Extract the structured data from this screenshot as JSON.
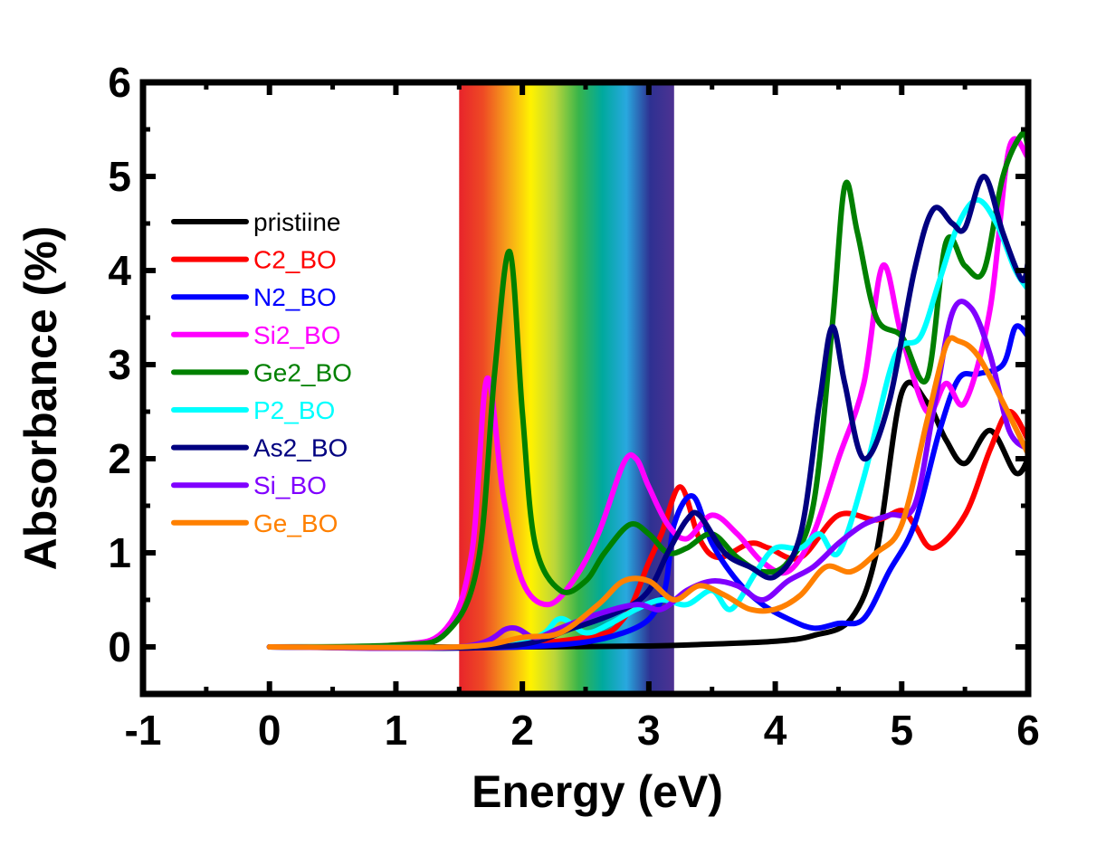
{
  "chart_data": {
    "type": "line",
    "xlabel": "Energy (eV)",
    "ylabel": "Absorbance (%)",
    "xlim": [
      -1,
      6
    ],
    "ylim": [
      -0.5,
      6
    ],
    "x_ticks": [
      "-1",
      "0",
      "1",
      "2",
      "3",
      "4",
      "5",
      "6"
    ],
    "y_ticks": [
      "0",
      "1",
      "2",
      "3",
      "4",
      "5",
      "6"
    ],
    "legend_position": "left",
    "grid": false,
    "visible_spectrum_band": {
      "x_range": [
        1.5,
        3.2
      ],
      "colors": [
        "#e8242b",
        "#ee4a24",
        "#f6a01a",
        "#fff200",
        "#bcd63a",
        "#39b54a",
        "#00a99d",
        "#29a8df",
        "#2e3192",
        "#4e3292"
      ]
    },
    "series": [
      {
        "name": "pristiine",
        "color": "#000000",
        "x": [
          0,
          1,
          2,
          3,
          3.5,
          4,
          4.3,
          4.6,
          4.8,
          5.0,
          5.2,
          5.35,
          5.5,
          5.7,
          5.9,
          6.0
        ],
        "y": [
          0,
          0,
          0,
          0.01,
          0.03,
          0.06,
          0.12,
          0.3,
          1.0,
          2.7,
          2.6,
          2.2,
          1.95,
          2.3,
          1.85,
          2.0
        ]
      },
      {
        "name": "C2_BO",
        "color": "#ff0000",
        "x": [
          0,
          1.5,
          2.5,
          2.8,
          3.0,
          3.1,
          3.25,
          3.4,
          3.55,
          3.8,
          3.95,
          4.2,
          4.5,
          4.8,
          5.0,
          5.1,
          5.25,
          5.5,
          5.7,
          5.85,
          6.0
        ],
        "y": [
          0,
          0,
          0.1,
          0.3,
          0.9,
          1.2,
          1.7,
          1.15,
          0.95,
          1.1,
          1.05,
          0.95,
          1.4,
          1.35,
          1.45,
          1.3,
          1.05,
          1.4,
          2.1,
          2.5,
          2.2
        ]
      },
      {
        "name": "N2_BO",
        "color": "#0000ff",
        "x": [
          0,
          2.0,
          2.8,
          3.1,
          3.2,
          3.35,
          3.5,
          3.7,
          3.9,
          4.1,
          4.3,
          4.5,
          4.7,
          4.9,
          5.1,
          5.3,
          5.45,
          5.6,
          5.8,
          5.9,
          6.0
        ],
        "y": [
          0,
          0,
          0.15,
          0.5,
          1.3,
          1.6,
          1.1,
          0.7,
          0.45,
          0.3,
          0.2,
          0.25,
          0.3,
          0.8,
          1.3,
          2.3,
          2.85,
          2.9,
          3.0,
          3.4,
          3.3
        ]
      },
      {
        "name": "Si2_BO",
        "color": "#ff00ff",
        "x": [
          0,
          1.0,
          1.4,
          1.6,
          1.72,
          1.85,
          2.0,
          2.2,
          2.4,
          2.6,
          2.8,
          2.9,
          3.0,
          3.15,
          3.3,
          3.5,
          3.7,
          3.9,
          4.1,
          4.3,
          4.5,
          4.7,
          4.85,
          5.0,
          5.2,
          5.35,
          5.5,
          5.7,
          5.85,
          6.0
        ],
        "y": [
          0,
          0.02,
          0.2,
          1.0,
          2.85,
          1.6,
          0.7,
          0.45,
          0.7,
          1.2,
          1.95,
          2.0,
          1.7,
          1.3,
          1.15,
          1.4,
          1.2,
          0.9,
          0.8,
          1.2,
          2.0,
          2.8,
          4.05,
          3.3,
          2.5,
          2.8,
          2.6,
          3.6,
          5.3,
          5.2
        ]
      },
      {
        "name": "Ge2_BO",
        "color": "#008000",
        "x": [
          0,
          1.0,
          1.4,
          1.65,
          1.78,
          1.9,
          2.0,
          2.1,
          2.3,
          2.5,
          2.65,
          2.85,
          3.0,
          3.15,
          3.3,
          3.5,
          3.7,
          3.9,
          4.1,
          4.3,
          4.45,
          4.55,
          4.65,
          4.8,
          5.0,
          5.2,
          5.35,
          5.5,
          5.65,
          5.8,
          5.95,
          6.0
        ],
        "y": [
          0,
          0.02,
          0.15,
          0.9,
          2.9,
          4.2,
          2.5,
          1.1,
          0.6,
          0.7,
          1.0,
          1.3,
          1.2,
          1.0,
          1.05,
          1.2,
          0.95,
          0.8,
          0.9,
          1.5,
          3.4,
          4.9,
          4.4,
          3.5,
          3.3,
          2.85,
          4.3,
          4.05,
          4.0,
          5.0,
          5.45,
          5.3
        ]
      },
      {
        "name": "P2_BO",
        "color": "#00ffff",
        "x": [
          0,
          1.5,
          2.1,
          2.3,
          2.5,
          2.7,
          2.9,
          3.1,
          3.3,
          3.5,
          3.65,
          3.85,
          4.0,
          4.2,
          4.35,
          4.5,
          4.7,
          4.9,
          5.0,
          5.15,
          5.3,
          5.45,
          5.6,
          5.75,
          5.9,
          6.0
        ],
        "y": [
          0,
          0,
          0.1,
          0.3,
          0.15,
          0.25,
          0.4,
          0.5,
          0.45,
          0.6,
          0.4,
          0.8,
          1.05,
          1.05,
          1.2,
          1.0,
          1.8,
          2.9,
          3.2,
          3.3,
          3.9,
          4.5,
          4.75,
          4.5,
          4.0,
          3.8
        ]
      },
      {
        "name": "As2_BO",
        "color": "#000080",
        "x": [
          0,
          1.8,
          2.4,
          2.8,
          3.0,
          3.15,
          3.3,
          3.4,
          3.6,
          3.8,
          4.0,
          4.2,
          4.35,
          4.45,
          4.55,
          4.7,
          4.9,
          5.1,
          5.25,
          5.4,
          5.5,
          5.65,
          5.8,
          5.95,
          6.0
        ],
        "y": [
          0,
          0,
          0.2,
          0.4,
          0.6,
          1.0,
          1.35,
          1.4,
          1.0,
          0.85,
          0.75,
          1.2,
          2.6,
          3.4,
          2.8,
          2.0,
          2.6,
          4.0,
          4.65,
          4.5,
          4.45,
          5.0,
          4.4,
          3.9,
          4.1
        ]
      },
      {
        "name": "Si_BO",
        "color": "#8000ff",
        "x": [
          0,
          1.5,
          1.9,
          2.1,
          2.3,
          2.6,
          2.9,
          3.1,
          3.3,
          3.5,
          3.7,
          3.9,
          4.1,
          4.3,
          4.5,
          4.7,
          4.9,
          5.1,
          5.25,
          5.4,
          5.55,
          5.7,
          5.85,
          6.0
        ],
        "y": [
          0,
          0,
          0.2,
          0.1,
          0.2,
          0.35,
          0.45,
          0.4,
          0.6,
          0.7,
          0.65,
          0.5,
          0.7,
          0.85,
          1.1,
          1.3,
          1.4,
          1.5,
          2.5,
          3.55,
          3.6,
          3.1,
          2.3,
          2.1
        ]
      },
      {
        "name": "Ge_BO",
        "color": "#ff8000",
        "x": [
          0,
          1.5,
          2.0,
          2.3,
          2.6,
          2.8,
          3.0,
          3.2,
          3.4,
          3.6,
          3.8,
          4.0,
          4.2,
          4.4,
          4.6,
          4.8,
          5.0,
          5.2,
          5.35,
          5.45,
          5.6,
          5.8,
          6.0
        ],
        "y": [
          0,
          0,
          0.1,
          0.15,
          0.45,
          0.7,
          0.7,
          0.5,
          0.65,
          0.55,
          0.4,
          0.4,
          0.55,
          0.85,
          0.8,
          1.0,
          1.3,
          2.4,
          3.2,
          3.25,
          3.1,
          2.6,
          2.05
        ]
      }
    ]
  }
}
